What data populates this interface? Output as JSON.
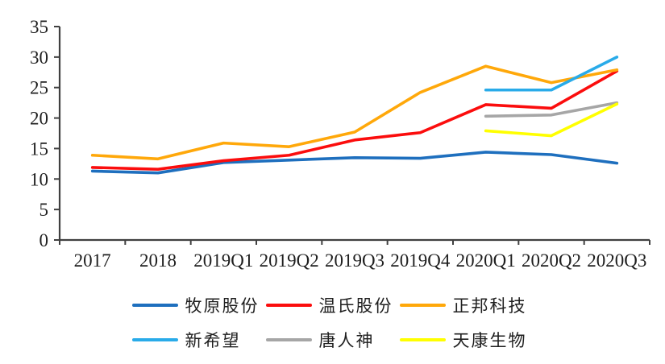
{
  "chart_data": {
    "type": "line",
    "title": "",
    "xlabel": "",
    "ylabel": "",
    "categories": [
      "2017",
      "2018",
      "2019Q1",
      "2019Q2",
      "2019Q3",
      "2019Q4",
      "2020Q1",
      "2020Q2",
      "2020Q3"
    ],
    "series": [
      {
        "name": "牧原股份",
        "color": "#1e6fbe",
        "values": [
          11.3,
          11.0,
          12.7,
          13.1,
          13.5,
          13.4,
          14.4,
          14.0,
          12.6
        ]
      },
      {
        "name": "温氏股份",
        "color": "#fb0d0d",
        "values": [
          11.9,
          11.6,
          13.0,
          13.9,
          16.4,
          17.6,
          22.2,
          21.6,
          27.7
        ]
      },
      {
        "name": "正邦科技",
        "color": "#ffa80a",
        "values": [
          13.9,
          13.3,
          15.9,
          15.3,
          17.7,
          24.2,
          28.5,
          25.8,
          27.9
        ]
      },
      {
        "name": "新希望",
        "color": "#29abe9",
        "values": [
          null,
          null,
          null,
          null,
          null,
          null,
          24.6,
          24.6,
          30.0
        ]
      },
      {
        "name": "唐人神",
        "color": "#a6a6a6",
        "values": [
          null,
          null,
          null,
          null,
          null,
          null,
          20.3,
          20.5,
          22.5
        ]
      },
      {
        "name": "天康生物",
        "color": "#ffff00",
        "values": [
          null,
          null,
          null,
          null,
          null,
          null,
          17.9,
          17.1,
          22.3
        ]
      }
    ],
    "ylim": [
      0,
      35
    ],
    "ytick_step": 5,
    "yticks": [
      "35",
      "30",
      "25",
      "20",
      "15",
      "10",
      "5",
      "0"
    ],
    "grid": false,
    "legend_position": "bottom",
    "axis_color": "#404040",
    "tick_label_color": "#1f1f1f"
  }
}
